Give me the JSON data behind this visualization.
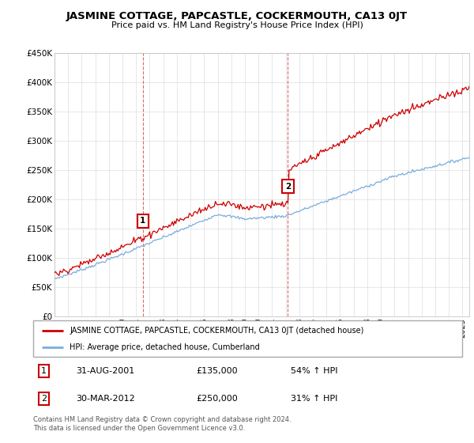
{
  "title": "JASMINE COTTAGE, PAPCASTLE, COCKERMOUTH, CA13 0JT",
  "subtitle": "Price paid vs. HM Land Registry's House Price Index (HPI)",
  "legend_line1": "JASMINE COTTAGE, PAPCASTLE, COCKERMOUTH, CA13 0JT (detached house)",
  "legend_line2": "HPI: Average price, detached house, Cumberland",
  "footnote": "Contains HM Land Registry data © Crown copyright and database right 2024.\nThis data is licensed under the Open Government Licence v3.0.",
  "sale1_date": "31-AUG-2001",
  "sale1_price": "£135,000",
  "sale1_hpi": "54% ↑ HPI",
  "sale2_date": "30-MAR-2012",
  "sale2_price": "£250,000",
  "sale2_hpi": "31% ↑ HPI",
  "red_color": "#cc0000",
  "blue_color": "#7aaddc",
  "grid_color": "#dddddd",
  "ylim": [
    0,
    450000
  ],
  "yticks": [
    0,
    50000,
    100000,
    150000,
    200000,
    250000,
    300000,
    350000,
    400000,
    450000
  ],
  "x_start_year": 1995,
  "x_end_year": 2025
}
